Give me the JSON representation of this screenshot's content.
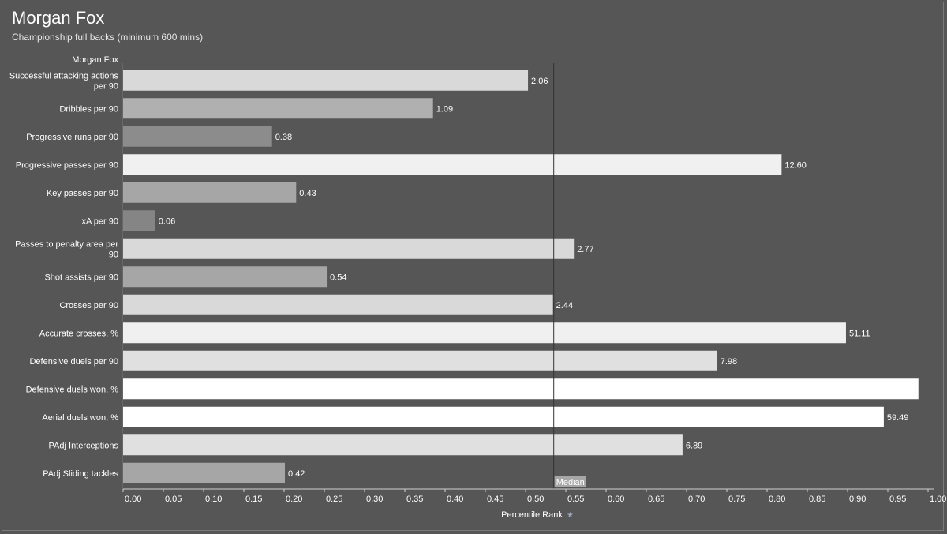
{
  "header": {
    "title": "Morgan Fox",
    "subtitle": "Championship full backs (minimum 600 mins)"
  },
  "chart_data": {
    "type": "bar",
    "orientation": "horizontal",
    "row_header": "Morgan Fox",
    "xlabel": "Percentile Rank",
    "xlim": [
      0,
      1
    ],
    "xticks": [
      "0.00",
      "0.05",
      "0.10",
      "0.15",
      "0.20",
      "0.25",
      "0.30",
      "0.35",
      "0.40",
      "0.45",
      "0.50",
      "0.55",
      "0.60",
      "0.65",
      "0.70",
      "0.75",
      "0.80",
      "0.85",
      "0.90",
      "0.95",
      "1.00"
    ],
    "median": {
      "value": 0.535,
      "label": "Median"
    },
    "categories": [
      [
        "Successful attacking actions",
        "per 90"
      ],
      [
        "Dribbles per 90"
      ],
      [
        "Progressive runs per 90"
      ],
      [
        "Progressive passes per 90"
      ],
      [
        "Key passes per 90"
      ],
      [
        "xA per 90"
      ],
      [
        "Passes to penalty area per",
        "90"
      ],
      [
        "Shot assists per 90"
      ],
      [
        "Crosses per 90"
      ],
      [
        "Accurate crosses, %"
      ],
      [
        "Defensive duels per 90"
      ],
      [
        "Defensive duels won, %"
      ],
      [
        "Aerial duels won, %"
      ],
      [
        "PAdj Interceptions"
      ],
      [
        "PAdj Sliding tackles"
      ]
    ],
    "percentiles": [
      0.503,
      0.385,
      0.185,
      0.818,
      0.215,
      0.04,
      0.56,
      0.253,
      0.534,
      0.898,
      0.738,
      0.988,
      0.945,
      0.695,
      0.201
    ],
    "labels": [
      "2.06",
      "1.09",
      "0.38",
      "12.60",
      "0.43",
      "0.06",
      "2.77",
      "0.54",
      "2.44",
      "51.11",
      "7.98",
      "",
      "59.49",
      "6.89",
      "0.42"
    ],
    "colors": [
      "#d9d9d9",
      "#b0b0b0",
      "#8c8c8c",
      "#f0f0f0",
      "#a6a6a6",
      "#858585",
      "#d9d9d9",
      "#a6a6a6",
      "#d9d9d9",
      "#f0f0f0",
      "#e0e0e0",
      "#ffffff",
      "#ffffff",
      "#e0e0e0",
      "#a6a6a6"
    ]
  }
}
